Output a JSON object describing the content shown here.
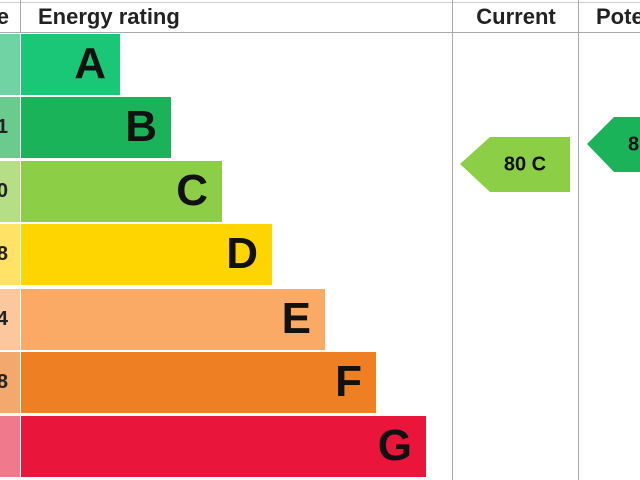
{
  "header": {
    "score": "e",
    "rating": "Energy rating",
    "current": "Current",
    "potential": "Pote"
  },
  "bands": [
    {
      "letter": "A",
      "color": "#19c776",
      "light": "#6fd3a3"
    },
    {
      "letter": "B",
      "score": "1",
      "color": "#1bb35a",
      "light": "#6bcb8f"
    },
    {
      "letter": "C",
      "score": "0",
      "color": "#8cce46",
      "light": "#b5de86"
    },
    {
      "letter": "D",
      "score": "8",
      "color": "#ffd500",
      "light": "#ffe266"
    },
    {
      "letter": "E",
      "score": "4",
      "color": "#fbaa65",
      "light": "#fcc79c"
    },
    {
      "letter": "F",
      "score": "8",
      "color": "#ee8023",
      "light": "#f3a86e"
    },
    {
      "letter": "G",
      "color": "#e9153b",
      "light": "#f07a8b"
    }
  ],
  "current": {
    "label": "80 C",
    "color": "#8cce46"
  },
  "potential": {
    "label": "8",
    "color": "#1bb35a"
  }
}
